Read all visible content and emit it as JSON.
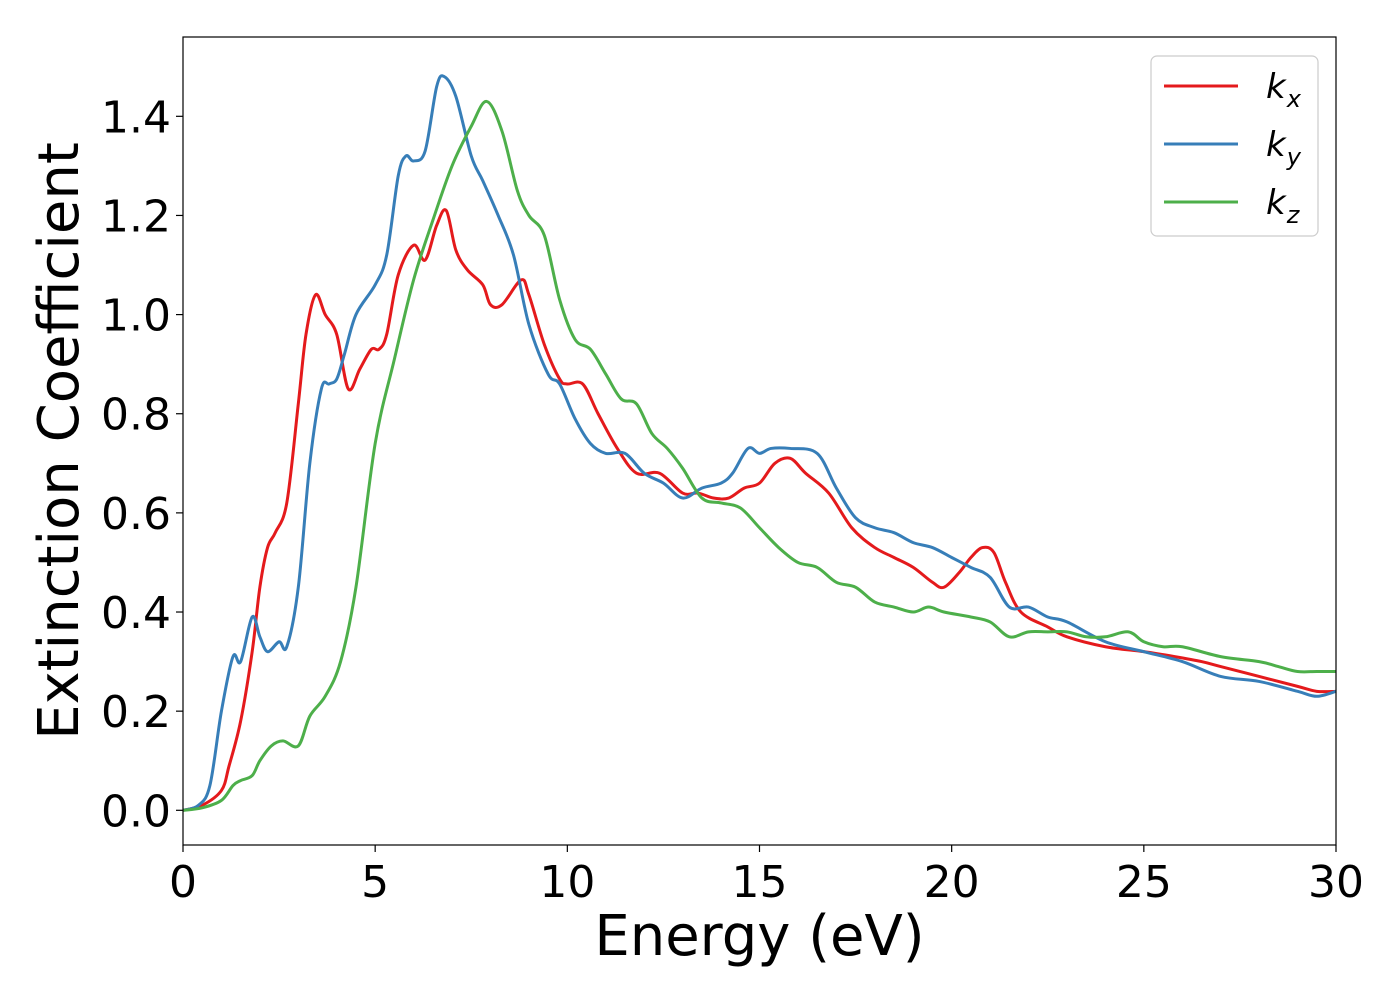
{
  "chart_data": {
    "type": "line",
    "xlabel": "Energy (eV)",
    "ylabel": "Extinction Coefficient",
    "xlim": [
      0,
      30
    ],
    "ylim": [
      -0.07,
      1.56
    ],
    "xticks": [
      0,
      5,
      10,
      15,
      20,
      25,
      30
    ],
    "xtick_labels": [
      "0",
      "5",
      "10",
      "15",
      "20",
      "25",
      "30"
    ],
    "yticks": [
      0.0,
      0.2,
      0.4,
      0.6,
      0.8,
      1.0,
      1.2,
      1.4
    ],
    "ytick_labels": [
      "0.0",
      "0.2",
      "0.4",
      "0.6",
      "0.8",
      "1.0",
      "1.2",
      "1.4"
    ],
    "grid": false,
    "legend_position": "top-right",
    "series": [
      {
        "name": "k_x",
        "label_main": "k",
        "label_sub": "x",
        "color": "#e41a1c",
        "x": [
          0,
          0.5,
          1.0,
          1.2,
          1.5,
          1.8,
          2.0,
          2.2,
          2.4,
          2.7,
          3.0,
          3.2,
          3.45,
          3.7,
          4.0,
          4.3,
          4.6,
          4.9,
          5.1,
          5.3,
          5.6,
          6.0,
          6.3,
          6.6,
          6.85,
          7.1,
          7.4,
          7.8,
          8.0,
          8.3,
          8.8,
          9.0,
          9.4,
          9.8,
          10.0,
          10.4,
          10.8,
          11.3,
          11.8,
          12.4,
          13.0,
          13.4,
          13.8,
          14.2,
          14.6,
          15.0,
          15.4,
          15.8,
          16.2,
          16.8,
          17.4,
          18.0,
          18.5,
          19.0,
          19.5,
          19.8,
          20.2,
          20.5,
          20.8,
          21.1,
          21.4,
          21.8,
          22.5,
          23.0,
          24.0,
          25.0,
          25.8,
          26.5,
          27.0,
          28.0,
          29.0,
          29.5,
          30.0
        ],
        "y": [
          0.0,
          0.01,
          0.04,
          0.09,
          0.18,
          0.32,
          0.45,
          0.53,
          0.56,
          0.62,
          0.82,
          0.96,
          1.04,
          1.0,
          0.96,
          0.85,
          0.89,
          0.93,
          0.93,
          0.96,
          1.08,
          1.14,
          1.11,
          1.18,
          1.21,
          1.13,
          1.09,
          1.06,
          1.02,
          1.02,
          1.07,
          1.04,
          0.94,
          0.87,
          0.86,
          0.86,
          0.8,
          0.73,
          0.68,
          0.68,
          0.64,
          0.64,
          0.63,
          0.63,
          0.65,
          0.66,
          0.7,
          0.71,
          0.68,
          0.64,
          0.57,
          0.53,
          0.51,
          0.49,
          0.46,
          0.45,
          0.48,
          0.51,
          0.53,
          0.52,
          0.46,
          0.4,
          0.37,
          0.35,
          0.33,
          0.32,
          0.31,
          0.3,
          0.29,
          0.27,
          0.25,
          0.24,
          0.24
        ]
      },
      {
        "name": "k_y",
        "label_main": "k",
        "label_sub": "y",
        "color": "#377eb8",
        "x": [
          0,
          0.4,
          0.7,
          1.0,
          1.3,
          1.5,
          1.8,
          2.0,
          2.2,
          2.5,
          2.7,
          3.0,
          3.3,
          3.6,
          3.8,
          4.0,
          4.2,
          4.5,
          5.0,
          5.3,
          5.6,
          5.8,
          6.0,
          6.3,
          6.6,
          6.8,
          7.1,
          7.5,
          7.8,
          8.2,
          8.6,
          9.0,
          9.5,
          9.8,
          10.2,
          10.6,
          11.0,
          11.5,
          12.0,
          12.5,
          13.0,
          13.5,
          14.0,
          14.3,
          14.7,
          15.0,
          15.3,
          15.8,
          16.5,
          17.0,
          17.5,
          18.0,
          18.5,
          19.0,
          19.5,
          20.0,
          20.5,
          21.0,
          21.5,
          22.0,
          22.5,
          23.0,
          24.0,
          25.0,
          26.0,
          27.0,
          28.0,
          29.0,
          29.5,
          30.0
        ],
        "y": [
          0.0,
          0.01,
          0.05,
          0.2,
          0.31,
          0.3,
          0.39,
          0.35,
          0.32,
          0.34,
          0.33,
          0.45,
          0.7,
          0.85,
          0.86,
          0.87,
          0.92,
          1.0,
          1.06,
          1.12,
          1.28,
          1.32,
          1.31,
          1.33,
          1.46,
          1.48,
          1.44,
          1.32,
          1.27,
          1.2,
          1.12,
          0.98,
          0.88,
          0.86,
          0.79,
          0.74,
          0.72,
          0.72,
          0.68,
          0.66,
          0.63,
          0.65,
          0.66,
          0.68,
          0.73,
          0.72,
          0.73,
          0.73,
          0.72,
          0.65,
          0.59,
          0.57,
          0.56,
          0.54,
          0.53,
          0.51,
          0.49,
          0.47,
          0.41,
          0.41,
          0.39,
          0.38,
          0.34,
          0.32,
          0.3,
          0.27,
          0.26,
          0.24,
          0.23,
          0.24
        ]
      },
      {
        "name": "k_z",
        "label_main": "k",
        "label_sub": "z",
        "color": "#4daf4a",
        "x": [
          0,
          0.5,
          1.0,
          1.3,
          1.5,
          1.8,
          2.0,
          2.3,
          2.6,
          3.0,
          3.3,
          3.7,
          4.1,
          4.5,
          5.0,
          5.5,
          6.0,
          6.5,
          7.0,
          7.5,
          7.9,
          8.3,
          8.7,
          9.0,
          9.4,
          9.8,
          10.2,
          10.6,
          11.0,
          11.4,
          11.8,
          12.2,
          12.6,
          13.0,
          13.5,
          14.0,
          14.5,
          15.0,
          15.5,
          16.0,
          16.5,
          17.0,
          17.5,
          18.0,
          18.5,
          19.0,
          19.4,
          19.8,
          20.5,
          21.0,
          21.5,
          22.0,
          22.5,
          23.0,
          23.5,
          24.0,
          24.6,
          25.0,
          25.5,
          26.0,
          27.0,
          28.0,
          28.5,
          29.0,
          29.5,
          30.0
        ],
        "y": [
          0.0,
          0.005,
          0.02,
          0.05,
          0.06,
          0.07,
          0.1,
          0.13,
          0.14,
          0.13,
          0.19,
          0.23,
          0.3,
          0.45,
          0.74,
          0.91,
          1.07,
          1.19,
          1.3,
          1.38,
          1.43,
          1.37,
          1.25,
          1.2,
          1.16,
          1.03,
          0.95,
          0.93,
          0.88,
          0.83,
          0.82,
          0.76,
          0.73,
          0.69,
          0.63,
          0.62,
          0.61,
          0.57,
          0.53,
          0.5,
          0.49,
          0.46,
          0.45,
          0.42,
          0.41,
          0.4,
          0.41,
          0.4,
          0.39,
          0.38,
          0.35,
          0.36,
          0.36,
          0.36,
          0.35,
          0.35,
          0.36,
          0.34,
          0.33,
          0.33,
          0.31,
          0.3,
          0.29,
          0.28,
          0.28,
          0.28
        ]
      }
    ]
  }
}
